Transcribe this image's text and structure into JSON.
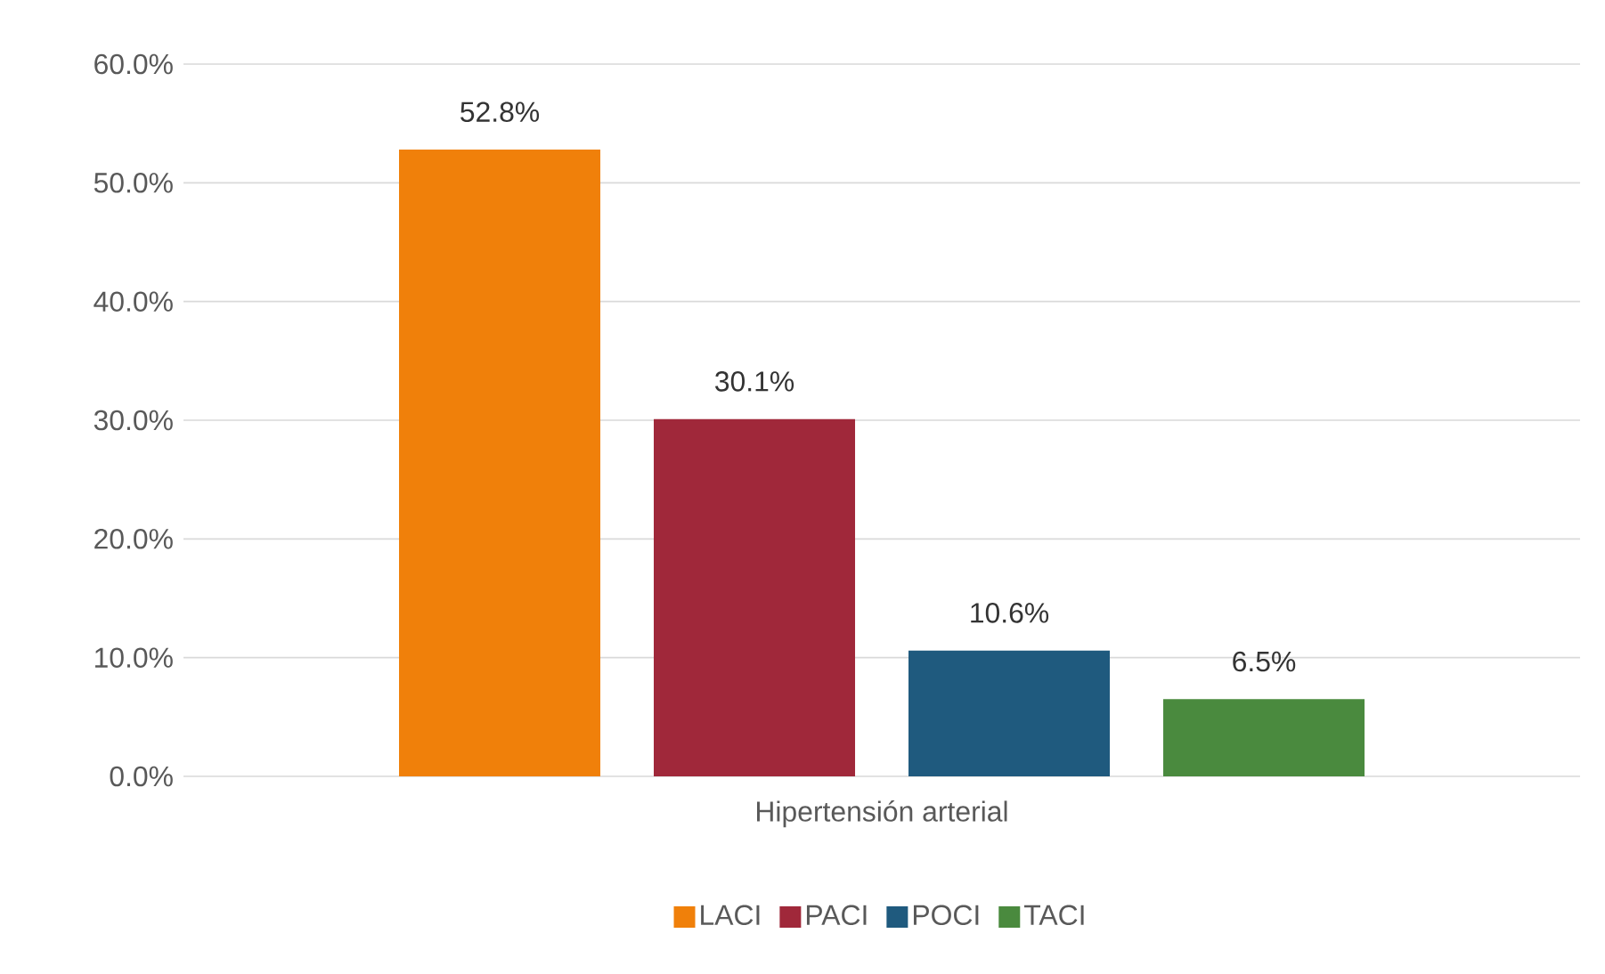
{
  "chart_data": {
    "type": "bar",
    "categories": [
      "Hipertensión arterial"
    ],
    "series": [
      {
        "name": "LACI",
        "color": "#f0800a",
        "values": [
          52.8
        ],
        "value_labels": [
          "52.8%"
        ]
      },
      {
        "name": "PACI",
        "color": "#a0283a",
        "values": [
          30.1
        ],
        "value_labels": [
          "30.1%"
        ]
      },
      {
        "name": "POCI",
        "color": "#1f5a7e",
        "values": [
          10.6
        ],
        "value_labels": [
          "10.6%"
        ]
      },
      {
        "name": "TACI",
        "color": "#4a8a3e",
        "values": [
          6.5
        ],
        "value_labels": [
          "6.5%"
        ]
      }
    ],
    "ylim": [
      0,
      60
    ],
    "yticks": [
      {
        "value": 0,
        "label": "0.0%"
      },
      {
        "value": 10,
        "label": "10.0%"
      },
      {
        "value": 20,
        "label": "20.0%"
      },
      {
        "value": 30,
        "label": "30.0%"
      },
      {
        "value": 40,
        "label": "40.0%"
      },
      {
        "value": 50,
        "label": "50.0%"
      },
      {
        "value": 60,
        "label": "60.0%"
      }
    ],
    "grid": "y",
    "legend": "bottom"
  }
}
